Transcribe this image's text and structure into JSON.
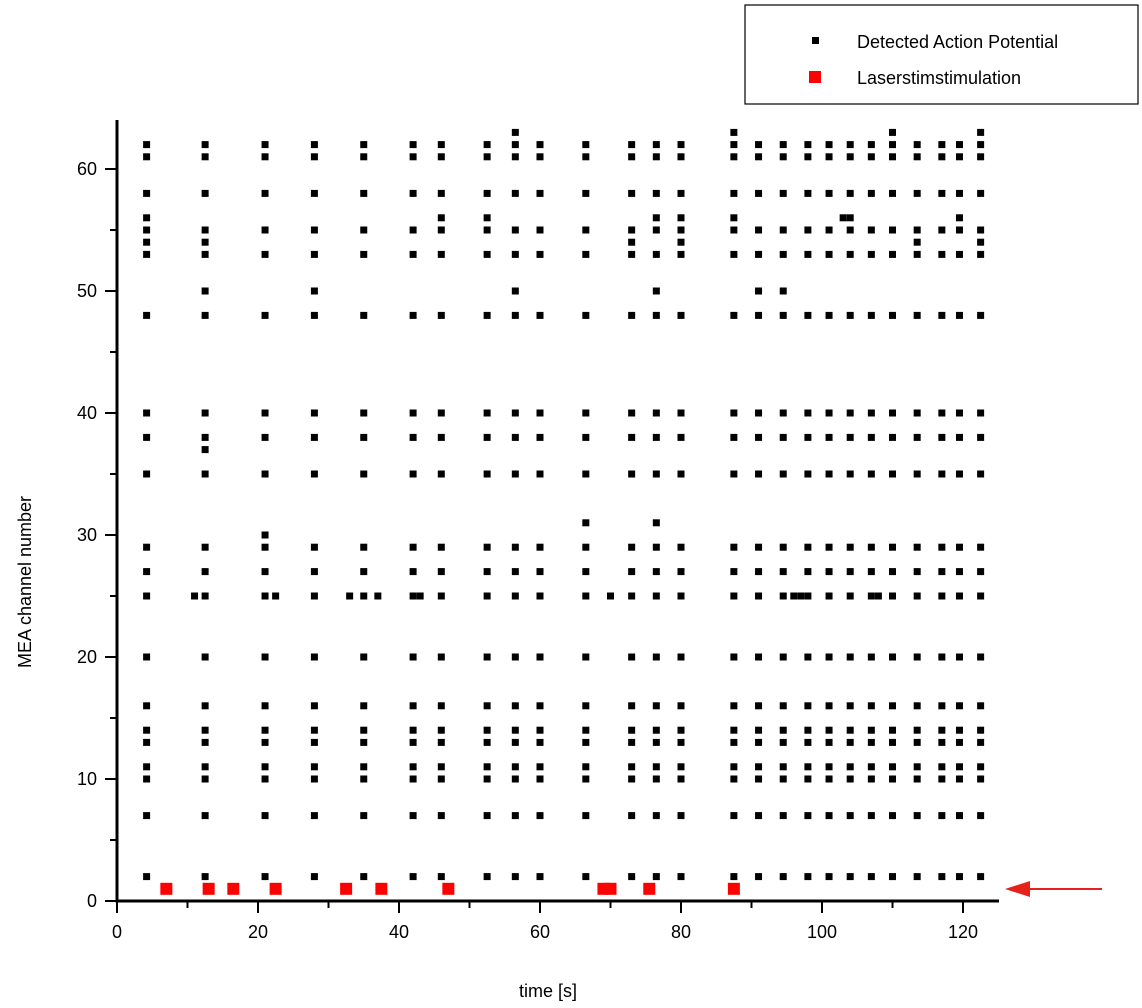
{
  "chart_data": {
    "type": "scatter",
    "title": "",
    "xlabel": "time [s]",
    "ylabel": "MEA channel number",
    "xlim": [
      0,
      125
    ],
    "ylim": [
      0,
      64
    ],
    "x_ticks": [
      0,
      20,
      40,
      60,
      80,
      100,
      120
    ],
    "y_ticks": [
      0,
      10,
      20,
      30,
      40,
      50,
      60
    ],
    "grid": false,
    "legend_position": "top-right",
    "legend": [
      {
        "label": "Detected Action Potential",
        "color": "#000000",
        "marker": "small-square"
      },
      {
        "label": "Laserstimstimulation",
        "color": "#ff0000",
        "marker": "large-square"
      }
    ],
    "annotation": {
      "type": "arrow",
      "points_to_channel": 1,
      "color": "#e8201a"
    },
    "series": [
      {
        "name": "Detected Action Potential",
        "color": "#000000",
        "x": [
          4.2,
          12.5,
          21.0,
          28.0,
          35.0,
          42.0,
          46.0,
          52.5,
          56.5,
          60.0,
          66.5,
          73.0,
          76.5,
          80.0,
          87.5,
          91.0,
          94.5,
          98.0,
          101.0,
          104.0,
          107.0,
          110.0,
          113.5,
          117.0,
          119.5,
          122.5
        ],
        "spike_channels": [
          2,
          7,
          10,
          11,
          13,
          14,
          16,
          20,
          25,
          27,
          29,
          35,
          38,
          40,
          48,
          53,
          55,
          58,
          61,
          62
        ],
        "extra_points": [
          [
            4.2,
            54
          ],
          [
            4.2,
            56
          ],
          [
            12.5,
            37
          ],
          [
            12.5,
            50
          ],
          [
            12.5,
            54
          ],
          [
            11.0,
            25
          ],
          [
            21.0,
            30
          ],
          [
            22.5,
            25
          ],
          [
            28.0,
            50
          ],
          [
            33.0,
            25
          ],
          [
            37.0,
            25
          ],
          [
            43.0,
            25
          ],
          [
            46.0,
            56
          ],
          [
            52.5,
            56
          ],
          [
            56.5,
            50
          ],
          [
            56.5,
            63
          ],
          [
            66.5,
            31
          ],
          [
            70.0,
            25
          ],
          [
            73.0,
            54
          ],
          [
            76.5,
            31
          ],
          [
            76.5,
            50
          ],
          [
            76.5,
            56
          ],
          [
            80.0,
            54
          ],
          [
            80.0,
            56
          ],
          [
            87.5,
            56
          ],
          [
            87.5,
            63
          ],
          [
            91.0,
            50
          ],
          [
            94.5,
            50
          ],
          [
            96.0,
            25
          ],
          [
            97.0,
            25
          ],
          [
            103.0,
            56
          ],
          [
            104.0,
            56
          ],
          [
            108.0,
            25
          ],
          [
            110.0,
            63
          ],
          [
            113.5,
            54
          ],
          [
            119.5,
            56
          ],
          [
            122.5,
            54
          ],
          [
            122.5,
            63
          ]
        ]
      },
      {
        "name": "Laserstimstimulation",
        "color": "#ff0000",
        "channel": 1,
        "x": [
          7.0,
          13.0,
          16.5,
          22.5,
          32.5,
          37.5,
          47.0,
          69.0,
          70.0,
          75.5,
          87.5
        ]
      }
    ]
  }
}
